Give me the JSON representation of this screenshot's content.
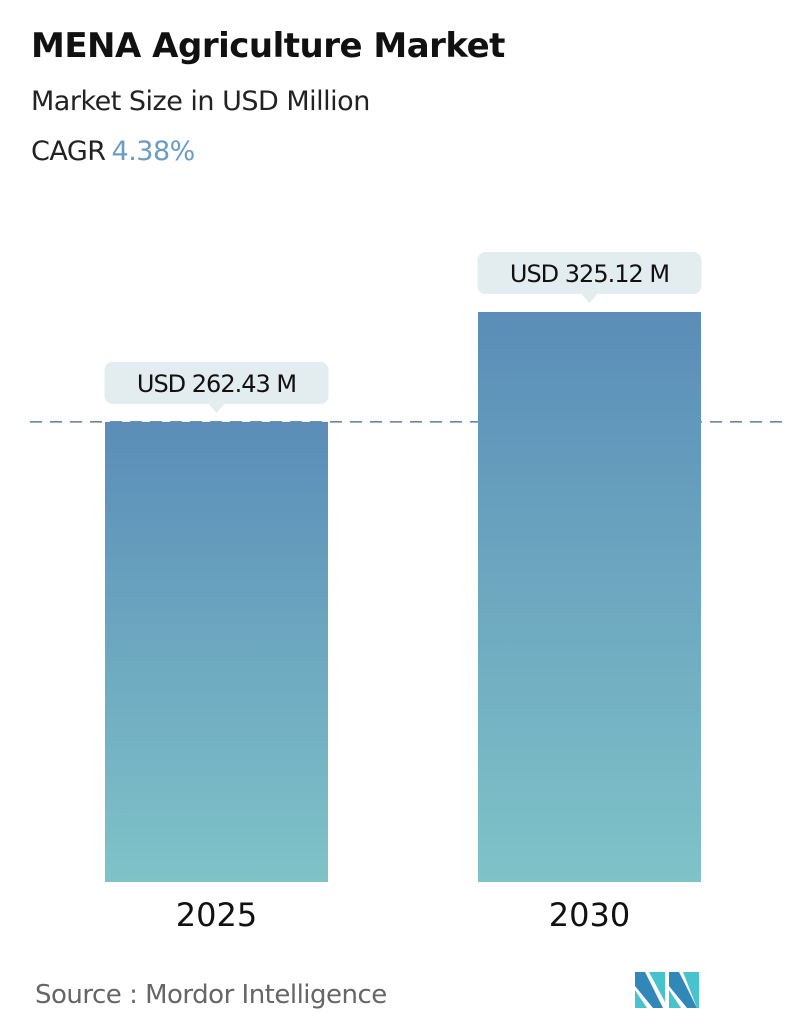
{
  "header": {
    "title": "MENA Agriculture Market",
    "subtitle": "Market Size in USD Million",
    "cagr_label": "CAGR",
    "cagr_value": "4.38%"
  },
  "chart_data": {
    "type": "bar",
    "categories": [
      "2025",
      "2030"
    ],
    "values": [
      262.43,
      325.12
    ],
    "data_labels": [
      "USD 262.43 M",
      "USD 325.12 M"
    ],
    "ylim": [
      0,
      325.12
    ],
    "grid": false,
    "reference_line": 262.43,
    "colors": {
      "bar_top": "#5b8db8",
      "bar_bottom": "#7fc3c8",
      "callout": "#e3ecef",
      "dash": "#5b7f9b"
    }
  },
  "footer": {
    "source": "Source :  Mordor Intelligence",
    "logo_text": "MI"
  }
}
